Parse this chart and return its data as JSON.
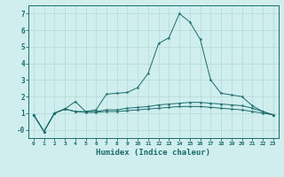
{
  "x": [
    0,
    1,
    2,
    3,
    4,
    5,
    6,
    7,
    8,
    9,
    10,
    11,
    12,
    13,
    14,
    15,
    16,
    17,
    18,
    19,
    20,
    21,
    22,
    23
  ],
  "line1": [
    0.9,
    -0.1,
    1.0,
    1.25,
    1.7,
    1.1,
    1.2,
    2.15,
    2.2,
    2.25,
    2.55,
    3.4,
    5.2,
    5.55,
    7.0,
    6.5,
    5.45,
    3.0,
    2.2,
    2.1,
    2.0,
    1.45,
    1.1,
    0.9
  ],
  "line2": [
    0.9,
    -0.1,
    1.0,
    1.25,
    1.1,
    1.1,
    1.1,
    1.2,
    1.2,
    1.3,
    1.35,
    1.4,
    1.5,
    1.55,
    1.6,
    1.65,
    1.65,
    1.6,
    1.55,
    1.5,
    1.45,
    1.3,
    1.1,
    0.9
  ],
  "line3": [
    0.9,
    -0.1,
    1.0,
    1.25,
    1.1,
    1.05,
    1.05,
    1.1,
    1.1,
    1.15,
    1.2,
    1.25,
    1.3,
    1.35,
    1.4,
    1.4,
    1.4,
    1.35,
    1.3,
    1.25,
    1.2,
    1.1,
    1.0,
    0.9
  ],
  "line_color": "#1a6b6b",
  "bg_color": "#d0eeee",
  "grid_color": "#b8dcdc",
  "xlabel": "Humidex (Indice chaleur)",
  "ylim": [
    -0.5,
    7.5
  ],
  "xlim": [
    -0.5,
    23.5
  ],
  "yticks": [
    0,
    1,
    2,
    3,
    4,
    5,
    6,
    7
  ],
  "ytick_labels": [
    "-0",
    "1",
    "2",
    "3",
    "4",
    "5",
    "6",
    "7"
  ],
  "xticks": [
    0,
    1,
    2,
    3,
    4,
    5,
    6,
    7,
    8,
    9,
    10,
    11,
    12,
    13,
    14,
    15,
    16,
    17,
    18,
    19,
    20,
    21,
    22,
    23
  ]
}
